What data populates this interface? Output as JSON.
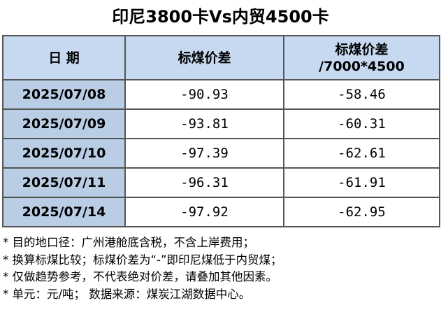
{
  "title": "印尼3800卡Vs内贸4500卡",
  "table": {
    "header": [
      "日 期",
      "标煤价差",
      "标煤价差\n/7000*4500"
    ],
    "rows": [
      [
        "2025/07/08",
        "-90.93",
        "-58.46"
      ],
      [
        "2025/07/09",
        "-93.81",
        "-60.31"
      ],
      [
        "2025/07/10",
        "-97.39",
        "-62.61"
      ],
      [
        "2025/07/11",
        "-96.31",
        "-61.91"
      ],
      [
        "2025/07/14",
        "-97.92",
        "-62.95"
      ]
    ]
  },
  "notes": [
    "* 目的地口径：广州港舱底含税，不含上岸费用；",
    "* 换算标煤比较；标煤价差为“-”即印尼煤低于内贸煤；",
    "* 仅做趋势参考，不代表绝对价差，请叠加其他因素。",
    "* 单元：元/吨；  数据来源：煤炭江湖数据中心。"
  ]
}
